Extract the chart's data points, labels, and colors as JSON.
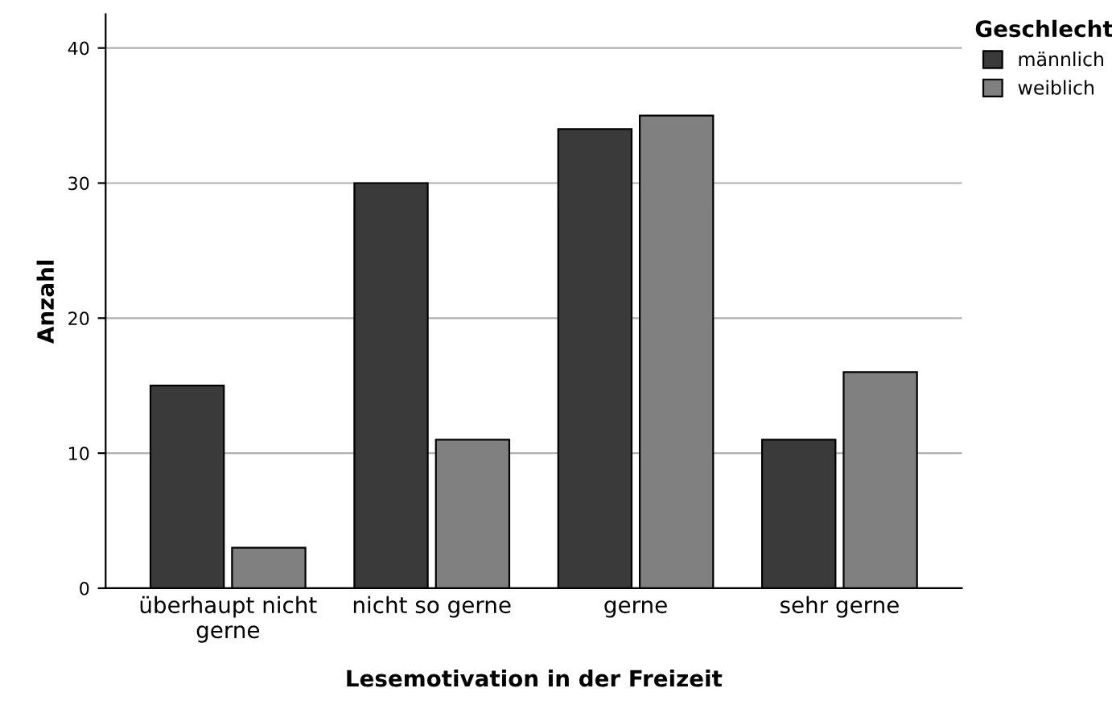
{
  "chart_data": {
    "type": "bar",
    "xlabel": "Lesemotivation in der Freizeit",
    "ylabel": "Anzahl",
    "legend_title": "Geschlecht",
    "categories": [
      "überhaupt nicht\ngerne",
      "nicht so gerne",
      "gerne",
      "sehr gerne"
    ],
    "series": [
      {
        "name": "männlich",
        "color": "#3a3a3a",
        "values": [
          15,
          30,
          34,
          11
        ]
      },
      {
        "name": "weiblich",
        "color": "#808080",
        "values": [
          3,
          11,
          35,
          16
        ]
      }
    ],
    "ylim": [
      0,
      42.5
    ],
    "yticks": [
      0,
      10,
      20,
      30,
      40
    ],
    "grid": "y",
    "legend": "top right"
  }
}
